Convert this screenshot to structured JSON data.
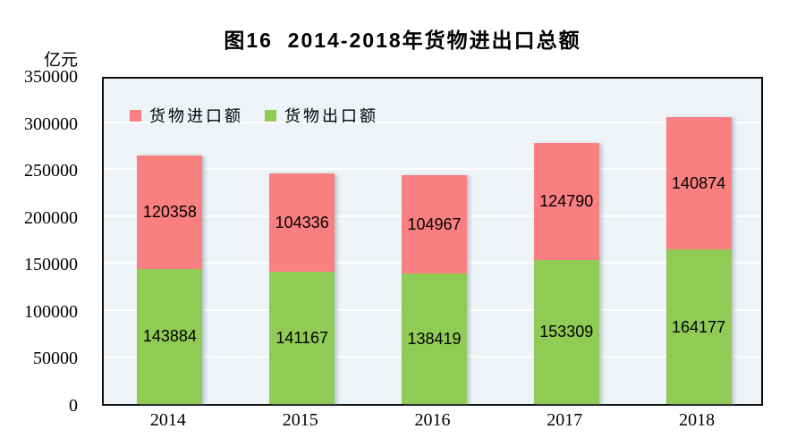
{
  "title": "图16  2014-2018年货物进出口总额",
  "y_axis": {
    "unit": "亿元",
    "ticks": [
      0,
      50000,
      100000,
      150000,
      200000,
      250000,
      300000,
      350000
    ]
  },
  "x_axis": {
    "labels": [
      "2014",
      "2015",
      "2016",
      "2017",
      "2018"
    ]
  },
  "legend": [
    {
      "label": "货物进口额",
      "color": "#F97F81"
    },
    {
      "label": "货物出口额",
      "color": "#90CC55"
    }
  ],
  "colors": {
    "plot_background": "#EDF3F7",
    "gridline": "#FFFFFF",
    "plot_border": "#111111",
    "import_bar": "#F97F81",
    "export_bar": "#90CC55"
  },
  "chart_data": {
    "type": "bar",
    "stacked": true,
    "title": "图16 2014-2018年货物进出口总额",
    "unit": "亿元",
    "categories": [
      "2014",
      "2015",
      "2016",
      "2017",
      "2018"
    ],
    "series": [
      {
        "name": "货物出口额",
        "role": "export",
        "color": "#90CC55",
        "values": [
          143884,
          141167,
          138419,
          153309,
          164177
        ]
      },
      {
        "name": "货物进口额",
        "role": "import",
        "color": "#F97F81",
        "values": [
          120358,
          104336,
          104967,
          124790,
          140874
        ]
      }
    ],
    "ylim": [
      0,
      350000
    ],
    "ytick_step": 50000,
    "grid": true,
    "gridline_color": "#FFFFFF",
    "legend_position": "top-left-inside",
    "value_labels": "inside-center"
  }
}
